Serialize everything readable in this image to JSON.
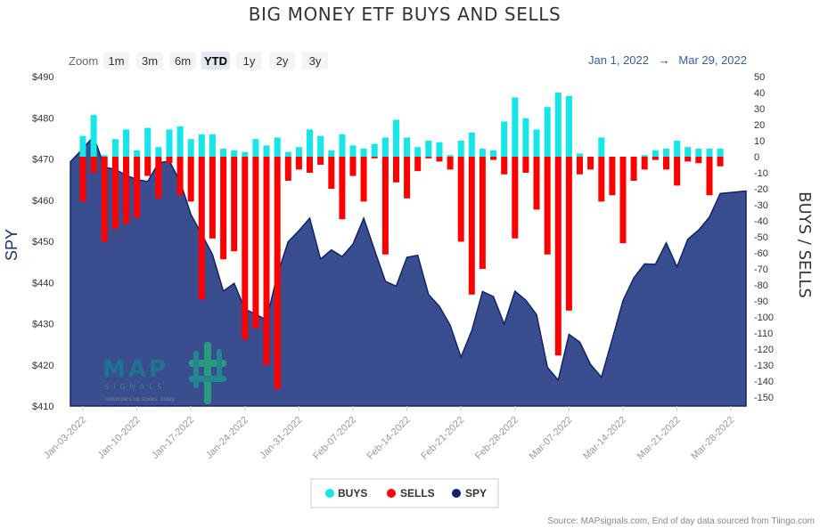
{
  "title": "BIG MONEY ETF BUYS AND SELLS",
  "zoom": {
    "label": "Zoom",
    "buttons": [
      "1m",
      "3m",
      "6m",
      "YTD",
      "1y",
      "2y",
      "3y"
    ],
    "active": "YTD"
  },
  "range": {
    "from": "Jan 1, 2022",
    "arrow": "→",
    "to": "Mar 29, 2022"
  },
  "colors": {
    "buys": "#15e6ea",
    "sells": "#ff0000",
    "spy": "#0f2470",
    "spy_fill": "#3a4d8f"
  },
  "legend": [
    {
      "name": "BUYS",
      "color": "#15e6ea"
    },
    {
      "name": "SELLS",
      "color": "#ff0000"
    },
    {
      "name": "SPY",
      "color": "#0f2470"
    }
  ],
  "source": "Source: MAPsignals.com, End of day data sourced from Tiingo.com",
  "logo": {
    "name": "MAP",
    "sub": "SIGNALS",
    "tag": "Tomorrow's top stocks. Today."
  },
  "chart_data": {
    "type": "bar+area",
    "title": "BIG MONEY ETF BUYS AND SELLS",
    "left_axis": {
      "title": "SPY",
      "ylim": [
        410,
        490
      ],
      "ticks": [
        "$410",
        "$420",
        "$430",
        "$440",
        "$450",
        "$460",
        "$470",
        "$480",
        "$490"
      ]
    },
    "right_axis": {
      "title": "BUYS / SELLS",
      "ylim": [
        -150,
        50
      ],
      "ticks": [
        "50",
        "40",
        "30",
        "20",
        "10",
        "0",
        "-10",
        "-20",
        "-30",
        "-40",
        "-50",
        "-60",
        "-70",
        "-80",
        "-90",
        "-100",
        "-110",
        "-120",
        "-130",
        "-140",
        "-150"
      ]
    },
    "x_tick_labels": [
      "Jan-03-2022",
      "Jan-10-2022",
      "Jan-17-2022",
      "Jan-24-2022",
      "Jan-31-2022",
      "Feb-07-2022",
      "Feb-14-2022",
      "Feb-21-2022",
      "Feb-28-2022",
      "Mar-07-2022",
      "Mar-14-2022",
      "Mar-21-2022",
      "Mar-28-2022"
    ],
    "x_tick_index": [
      0,
      5,
      10,
      15,
      20,
      25,
      30,
      35,
      40,
      45,
      50,
      55,
      60
    ],
    "dates": [
      "01-03",
      "01-04",
      "01-05",
      "01-06",
      "01-07",
      "01-10",
      "01-11",
      "01-12",
      "01-13",
      "01-14",
      "01-18",
      "01-19",
      "01-20",
      "01-21",
      "01-24",
      "01-25",
      "01-26",
      "01-27",
      "01-28",
      "01-31",
      "02-01",
      "02-02",
      "02-03",
      "02-04",
      "02-07",
      "02-08",
      "02-09",
      "02-10",
      "02-11",
      "02-14",
      "02-15",
      "02-16",
      "02-17",
      "02-18",
      "02-22",
      "02-23",
      "02-24",
      "02-25",
      "02-28",
      "03-01",
      "03-02",
      "03-03",
      "03-04",
      "03-07",
      "03-08",
      "03-09",
      "03-10",
      "03-11",
      "03-14",
      "03-15",
      "03-16",
      "03-17",
      "03-18",
      "03-21",
      "03-22",
      "03-23",
      "03-24",
      "03-25",
      "03-28",
      "03-29"
    ],
    "series": [
      {
        "name": "BUYS",
        "axis": "right",
        "values": [
          13,
          26,
          1,
          11,
          17,
          4,
          18,
          6,
          17,
          19,
          11,
          14,
          14,
          5,
          4,
          3,
          11,
          7,
          12,
          3,
          6,
          17,
          13,
          4,
          14,
          7,
          5,
          8,
          12,
          23,
          12,
          6,
          10,
          9,
          1,
          10,
          15,
          5,
          4,
          22,
          37,
          24,
          17,
          31,
          40,
          38,
          2,
          0,
          12,
          0,
          0,
          0,
          1,
          4,
          5,
          10,
          6,
          5,
          5,
          5
        ]
      },
      {
        "name": "SELLS",
        "axis": "right",
        "values": [
          -28,
          -10,
          -53,
          -45,
          -42,
          -38,
          -12,
          -26,
          -4,
          -24,
          -28,
          -89,
          -51,
          -64,
          -59,
          -114,
          -107,
          -130,
          -145,
          -15,
          -8,
          -10,
          -5,
          -20,
          -39,
          -12,
          -28,
          -1,
          -61,
          -16,
          -26,
          -9,
          -1,
          -3,
          -8,
          -53,
          -86,
          -70,
          -2,
          -11,
          -51,
          -10,
          -33,
          -61,
          -124,
          -96,
          -11,
          -8,
          -28,
          -24,
          -54,
          -15,
          -8,
          -2,
          -8,
          -18,
          -3,
          -4,
          -24,
          -6
        ]
      },
      {
        "name": "SPY",
        "axis": "left",
        "values": [
          472.5,
          475.5,
          468,
          467.5,
          466,
          465,
          464.5,
          469,
          469.5,
          464.5,
          456.5,
          451.7,
          446.8,
          437.9,
          439.8,
          433.5,
          432.3,
          430.9,
          441.9,
          449.9,
          452.6,
          455.6,
          445.7,
          447.9,
          446.3,
          449.3,
          455.6,
          447.9,
          440.3,
          439.1,
          446.1,
          446.6,
          437.1,
          434.2,
          429.6,
          421.9,
          428.3,
          437.8,
          436.6,
          429.9,
          437.9,
          435.7,
          432.2,
          419.4,
          416.3,
          427.4,
          425.5,
          420.1,
          417.0,
          426.2,
          435.6,
          441.1,
          444.5,
          444.4,
          449.6,
          443.8,
          450.5,
          452.7,
          455.9,
          461.6
        ]
      }
    ]
  }
}
